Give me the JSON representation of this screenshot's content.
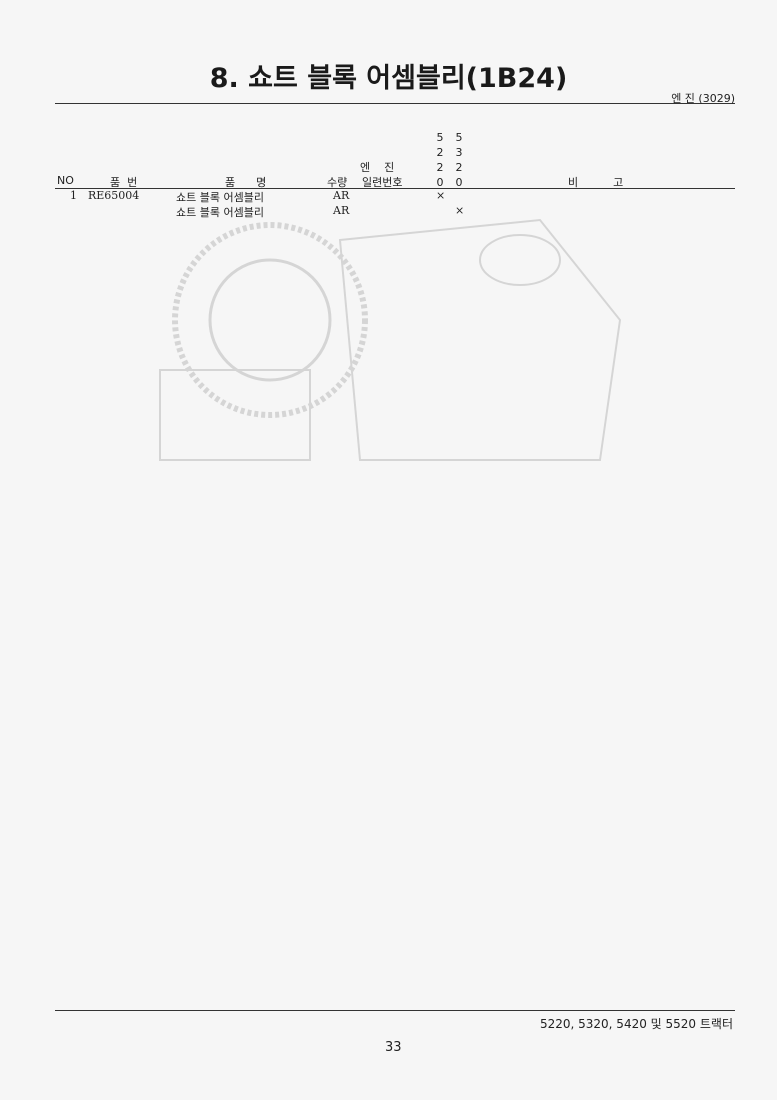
{
  "header": {
    "title": "8. 쇼트 블록 어셈블리(1B24)",
    "section_label": "엔 진 (3029)"
  },
  "table": {
    "columns": {
      "no": "NO",
      "part_no": "품  번",
      "part_name": "품      명",
      "qty": "수량",
      "engine_serial_top": "엔    진",
      "engine_serial_bottom": "일련번호",
      "model_5220": [
        "5",
        "2",
        "2",
        "0"
      ],
      "model_5320": [
        "5",
        "3",
        "2",
        "0"
      ],
      "remarks": "비          고"
    },
    "rows": [
      {
        "no": "1",
        "part_no": "RE65004",
        "part_name": "쇼트 블록 어셈블리",
        "qty": "AR",
        "m5220": "×",
        "m5320": ""
      },
      {
        "no": "",
        "part_no": "",
        "part_name": "쇼트 블록 어셈블리",
        "qty": "AR",
        "m5220": "",
        "m5320": "×"
      }
    ]
  },
  "footer": {
    "models": "5220, 5320, 5420 및 5520 트랙터",
    "page_number": "33"
  }
}
